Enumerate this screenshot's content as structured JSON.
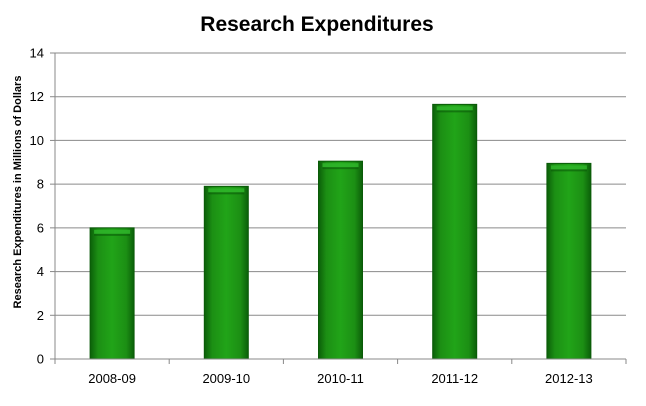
{
  "chart_data": {
    "type": "bar",
    "title": "Research Expenditures",
    "xlabel": "",
    "ylabel": "Research Expenditures in Millions of Dollars",
    "categories": [
      "2008-09",
      "2009-10",
      "2010-11",
      "2011-12",
      "2012-13"
    ],
    "values": [
      6.0,
      7.9,
      9.05,
      11.65,
      8.95
    ],
    "ylim": [
      0,
      14
    ],
    "yticks": [
      0,
      2,
      4,
      6,
      8,
      10,
      12,
      14
    ],
    "grid": true,
    "legend": "none",
    "colors": {
      "bar": "#1a8a12",
      "bar_light": "#2fb52a",
      "bar_dark": "#0a5a08"
    }
  }
}
